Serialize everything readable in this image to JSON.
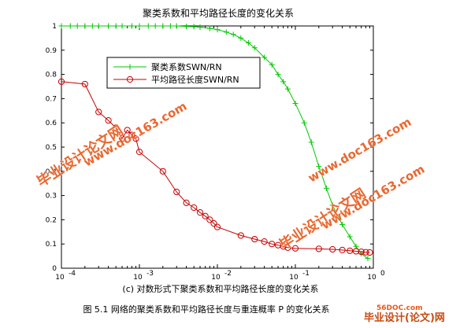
{
  "chart_data": {
    "type": "line",
    "title": "聚类系数和平均路径长度的变化关系",
    "x_scale": "log",
    "xlim": [
      0.0001,
      1
    ],
    "ylim": [
      0,
      1
    ],
    "x_ticks": [
      {
        "value": 0.0001,
        "base": "10",
        "exp": "-4"
      },
      {
        "value": 0.001,
        "base": "10",
        "exp": "-3"
      },
      {
        "value": 0.01,
        "base": "10",
        "exp": "-2"
      },
      {
        "value": 0.1,
        "base": "10",
        "exp": "-1"
      },
      {
        "value": 1,
        "base": "10",
        "exp": "0"
      }
    ],
    "y_ticks": [
      "0",
      "0.1",
      "0.2",
      "0.3",
      "0.4",
      "0.5",
      "0.6",
      "0.7",
      "0.8",
      "0.9",
      "1"
    ],
    "grid": false,
    "legend_position": "upper-left",
    "series": [
      {
        "name": "聚类系数SWN/RN",
        "color": "#00c800",
        "marker": "plus",
        "x": [
          0.0001,
          0.00013,
          0.00016,
          0.0002,
          0.00025,
          0.0003,
          0.0004,
          0.0005,
          0.0006,
          0.0008,
          0.001,
          0.0013,
          0.0016,
          0.002,
          0.0025,
          0.003,
          0.004,
          0.005,
          0.006,
          0.008,
          0.01,
          0.013,
          0.016,
          0.02,
          0.025,
          0.03,
          0.04,
          0.05,
          0.06,
          0.07,
          0.08,
          0.1,
          0.13,
          0.16,
          0.2,
          0.25,
          0.3,
          0.4,
          0.5,
          0.6,
          0.7,
          0.85
        ],
        "y": [
          1.0,
          1.0,
          1.0,
          1.0,
          1.0,
          1.0,
          1.0,
          1.0,
          1.0,
          1.0,
          1.0,
          1.0,
          1.0,
          1.0,
          1.0,
          1.0,
          0.998,
          0.997,
          0.995,
          0.99,
          0.985,
          0.975,
          0.965,
          0.95,
          0.93,
          0.91,
          0.87,
          0.84,
          0.8,
          0.77,
          0.74,
          0.68,
          0.6,
          0.52,
          0.42,
          0.33,
          0.26,
          0.18,
          0.13,
          0.09,
          0.06,
          0.04
        ]
      },
      {
        "name": "平均路径长度SWN/RN",
        "color": "#c80000",
        "marker": "circle",
        "x": [
          0.0001,
          0.0002,
          0.0003,
          0.0004,
          0.0005,
          0.0006,
          0.0007,
          0.0008,
          0.0009,
          0.001,
          0.002,
          0.003,
          0.004,
          0.005,
          0.006,
          0.007,
          0.008,
          0.009,
          0.01,
          0.02,
          0.03,
          0.04,
          0.05,
          0.06,
          0.07,
          0.08,
          0.1,
          0.2,
          0.3,
          0.4,
          0.5,
          0.6,
          0.7,
          0.8,
          0.9
        ],
        "y": [
          0.77,
          0.76,
          0.645,
          0.61,
          0.58,
          0.535,
          0.57,
          0.55,
          0.535,
          0.48,
          0.4,
          0.315,
          0.27,
          0.25,
          0.23,
          0.215,
          0.2,
          0.185,
          0.17,
          0.135,
          0.12,
          0.11,
          0.1,
          0.095,
          0.09,
          0.085,
          0.082,
          0.08,
          0.078,
          0.075,
          0.072,
          0.07,
          0.068,
          0.066,
          0.065
        ]
      }
    ]
  },
  "caption": {
    "sub": "(c) 对数形式下聚类系数和平均路径长度的变化关系",
    "main": "图 5.1 网络的聚类系数和平均路径长度与重连概率 P 的变化关系"
  },
  "watermarks": {
    "brand": "毕业设计论文网",
    "url": "www.doc163.com",
    "corner_site": "56DOC.com",
    "corner_brand": "毕业设计(论文)网"
  }
}
